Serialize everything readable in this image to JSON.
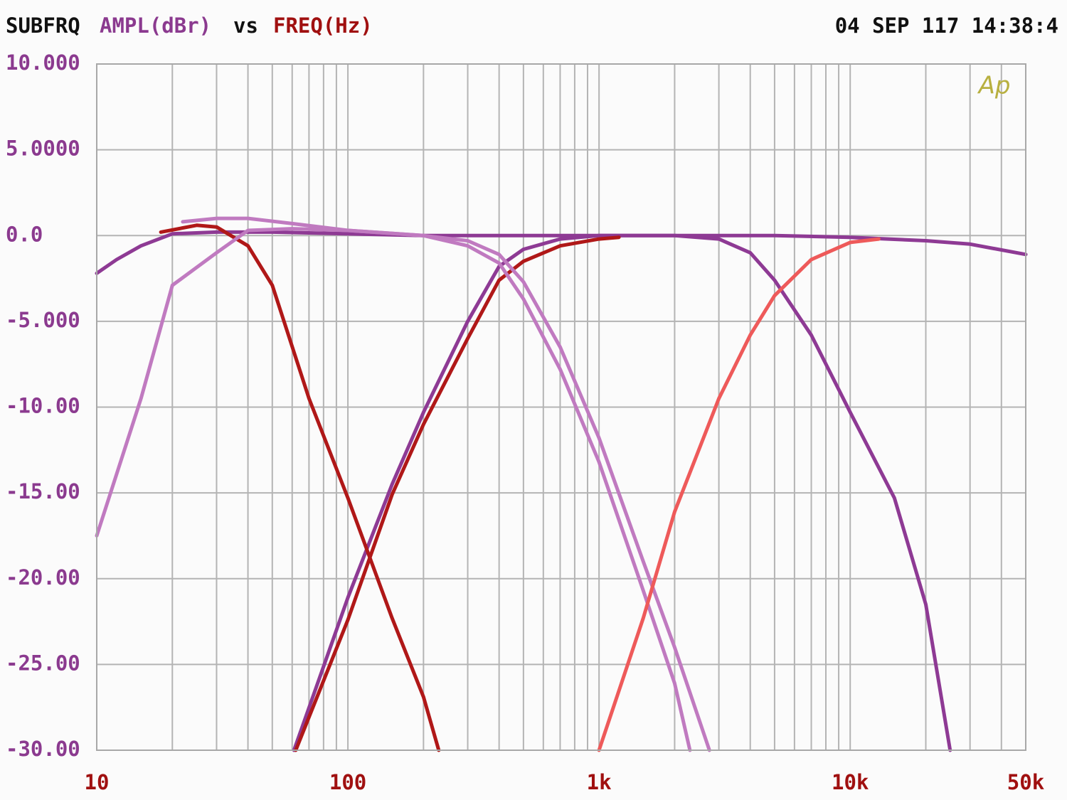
{
  "chart_data": {
    "type": "line",
    "title": "SUBFRQ",
    "y_label": "AMPL(dBr)",
    "title_joiner": "vs",
    "x_label": "FREQ(Hz)",
    "timestamp": "04 SEP 117 14:38:4",
    "logo": "Ap",
    "x_scale": "log",
    "grid": true,
    "xlim": [
      10,
      50000
    ],
    "ylim": [
      -30,
      10
    ],
    "xticks": [
      10,
      100,
      {
        "value": 1000,
        "label": "1k"
      },
      {
        "value": 10000,
        "label": "10k"
      },
      {
        "value": 50000,
        "label": "50k"
      }
    ],
    "xminor": [
      20,
      30,
      40,
      50,
      60,
      70,
      80,
      90,
      200,
      300,
      400,
      500,
      600,
      700,
      800,
      900,
      2000,
      3000,
      4000,
      5000,
      6000,
      7000,
      8000,
      9000,
      20000,
      30000,
      40000
    ],
    "yticks": [
      {
        "value": 10,
        "label": "10.000"
      },
      {
        "value": 5,
        "label": "5.0000"
      },
      {
        "value": 0,
        "label": "0.0"
      },
      {
        "value": -5,
        "label": "-5.000"
      },
      {
        "value": -10,
        "label": "-10.00"
      },
      {
        "value": -15,
        "label": "-15.00"
      },
      {
        "value": -20,
        "label": "-20.00"
      },
      {
        "value": -25,
        "label": "-25.00"
      },
      {
        "value": -30,
        "label": "-30.00"
      }
    ],
    "series": [
      {
        "color": "#8e3a94",
        "x": [
          10,
          12,
          15,
          20,
          30,
          50,
          100,
          200,
          500,
          1000,
          2000,
          5000,
          10000,
          20000,
          30000,
          50000
        ],
        "values": [
          -2.2,
          -1.4,
          -0.6,
          0.1,
          0.2,
          0.2,
          0.1,
          0,
          0,
          0,
          0,
          0,
          -0.1,
          -0.3,
          -0.5,
          -1.1
        ]
      },
      {
        "color": "#8e3a94",
        "x": [
          61,
          100,
          150,
          200,
          300,
          400,
          500,
          700,
          1000,
          2000,
          3000,
          4000,
          5000,
          7000,
          10000,
          15000,
          20000,
          25000
        ],
        "values": [
          -30,
          -21.1,
          -14.5,
          -10.3,
          -5,
          -1.8,
          -0.8,
          -0.2,
          0,
          0,
          -0.2,
          -1,
          -2.6,
          -5.8,
          -10.3,
          -15.3,
          -21.5,
          -30
        ]
      },
      {
        "color": "#b01818",
        "x": [
          18,
          25,
          30,
          40,
          50,
          70,
          100,
          150,
          200,
          230
        ],
        "values": [
          0.2,
          0.6,
          0.5,
          -0.6,
          -2.9,
          -9.5,
          -15.3,
          -22.3,
          -26.9,
          -30
        ]
      },
      {
        "color": "#b01818",
        "x": [
          62,
          100,
          150,
          200,
          300,
          400,
          500,
          700,
          1000,
          1200
        ],
        "values": [
          -30,
          -22.4,
          -15.1,
          -11,
          -6,
          -2.6,
          -1.5,
          -0.6,
          -0.2,
          -0.1
        ]
      },
      {
        "color": "#c07ac0",
        "x": [
          10,
          15,
          20,
          30,
          40,
          60,
          100,
          200,
          300,
          400,
          500,
          700,
          1000,
          1500,
          2000,
          2300
        ],
        "values": [
          -17.5,
          -9.5,
          -2.9,
          -1,
          0.3,
          0.4,
          0.3,
          0,
          -0.6,
          -1.6,
          -3.7,
          -7.8,
          -13.2,
          -20.7,
          -26.1,
          -30
        ]
      },
      {
        "color": "#c07ac0",
        "x": [
          22,
          30,
          40,
          60,
          100,
          200,
          300,
          400,
          500,
          700,
          1000,
          1500,
          2000,
          2750
        ],
        "values": [
          0.8,
          1,
          1,
          0.7,
          0.3,
          0,
          -0.3,
          -1.1,
          -2.7,
          -6.5,
          -11.8,
          -19,
          -24,
          -30
        ]
      },
      {
        "color": "#ee5a5a",
        "x": [
          1000,
          1500,
          2000,
          3000,
          4000,
          5000,
          7000,
          10000,
          13000
        ],
        "values": [
          -30,
          -22.3,
          -16.1,
          -9.5,
          -5.8,
          -3.5,
          -1.4,
          -0.4,
          -0.2
        ]
      }
    ]
  }
}
